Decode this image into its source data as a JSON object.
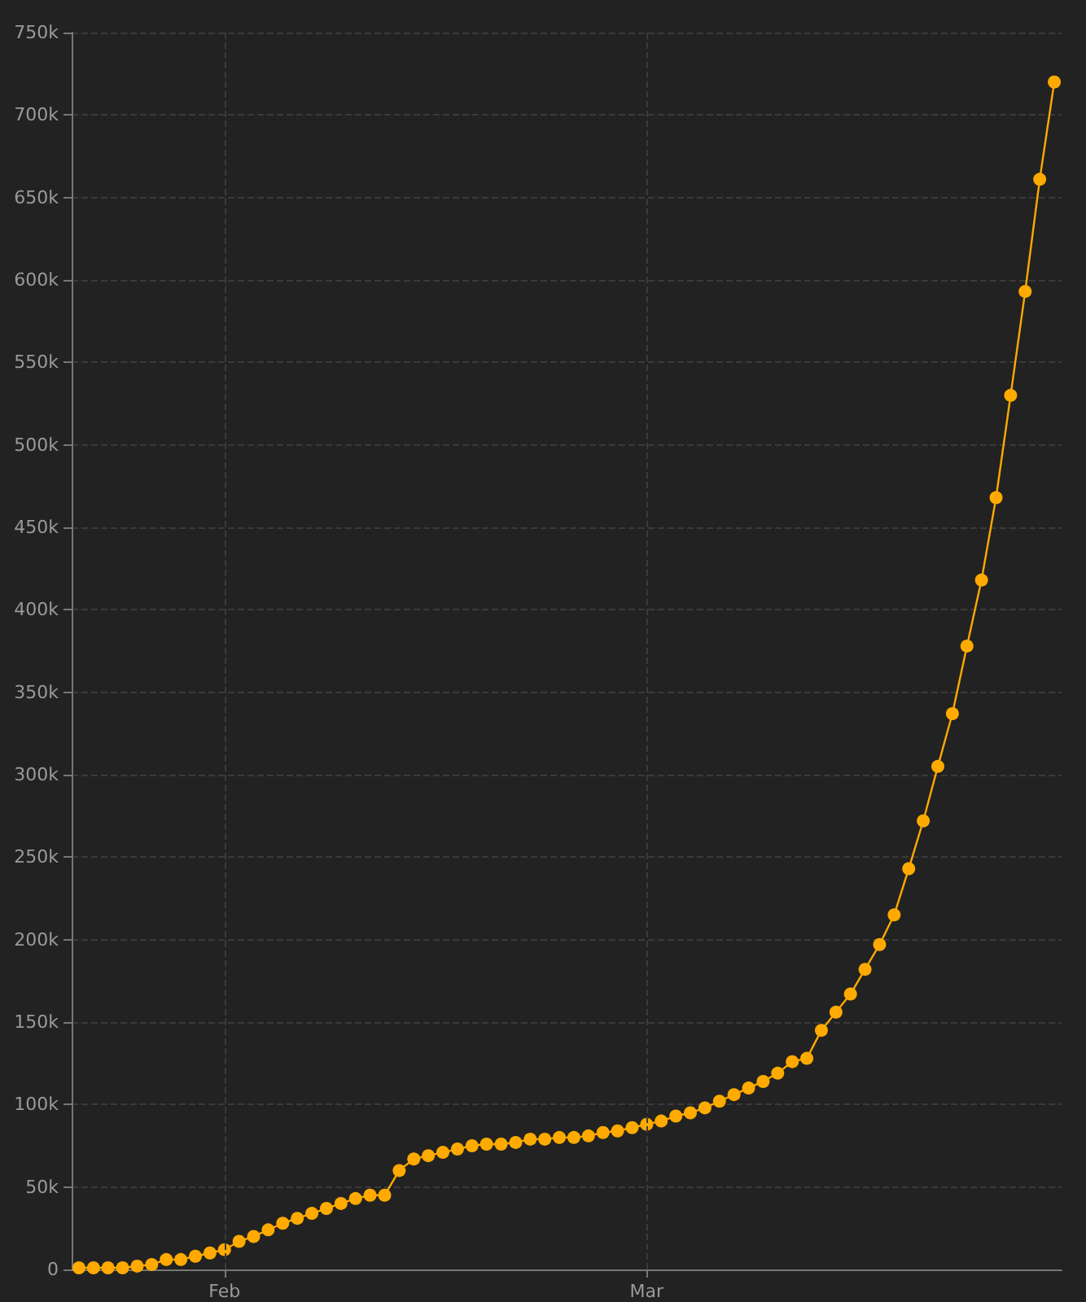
{
  "chart_data": {
    "type": "line",
    "color": "#ffaa00",
    "marker": "circle",
    "line_style": "solid",
    "grid": true,
    "x": [
      "--01-22",
      "--01-23",
      "--01-24",
      "--01-25",
      "--01-26",
      "--01-27",
      "--01-28",
      "--01-29",
      "--01-30",
      "--01-31",
      "--02-01",
      "--02-02",
      "--02-03",
      "--02-04",
      "--02-05",
      "--02-06",
      "--02-07",
      "--02-08",
      "--02-09",
      "--02-10",
      "--02-11",
      "--02-12",
      "--02-13",
      "--02-14",
      "--02-15",
      "--02-16",
      "--02-17",
      "--02-18",
      "--02-19",
      "--02-20",
      "--02-21",
      "--02-22",
      "--02-23",
      "--02-24",
      "--02-25",
      "--02-26",
      "--02-27",
      "--02-28",
      "--02-29",
      "--03-01",
      "--03-02",
      "--03-03",
      "--03-04",
      "--03-05",
      "--03-06",
      "--03-07",
      "--03-08",
      "--03-09",
      "--03-10",
      "--03-11",
      "--03-12",
      "--03-13",
      "--03-14",
      "--03-15",
      "--03-16",
      "--03-17",
      "--03-18",
      "--03-19",
      "--03-20",
      "--03-21",
      "--03-22",
      "--03-23",
      "--03-24",
      "--03-25",
      "--03-26",
      "--03-27",
      "--03-28",
      "--03-29"
    ],
    "values": [
      1000,
      1000,
      1000,
      1000,
      2000,
      3000,
      6000,
      6000,
      8000,
      10000,
      12000,
      17000,
      20000,
      24000,
      28000,
      31000,
      34000,
      37000,
      40000,
      43000,
      45000,
      45000,
      60000,
      67000,
      69000,
      71000,
      73000,
      75000,
      76000,
      76000,
      77000,
      79000,
      79000,
      80000,
      80000,
      81000,
      83000,
      84000,
      86000,
      88000,
      90000,
      93000,
      95000,
      98000,
      102000,
      106000,
      110000,
      114000,
      119000,
      126000,
      128000,
      145000,
      156000,
      167000,
      182000,
      197000,
      215000,
      243000,
      272000,
      305000,
      337000,
      378000,
      418000,
      468000,
      530000,
      593000,
      661000,
      720000
    ],
    "xlim": [
      "--01-21T12:00",
      "--03-29T12:00"
    ],
    "xticks": [
      {
        "value": "--02-01",
        "label": "Feb"
      },
      {
        "value": "--03-01",
        "label": "Mar"
      }
    ],
    "ylim": [
      0,
      750000
    ],
    "yticks": [
      0,
      {
        "value": 50000,
        "label": "50k"
      },
      {
        "value": 100000,
        "label": "100k"
      },
      {
        "value": 150000,
        "label": "150k"
      },
      {
        "value": 200000,
        "label": "200k"
      },
      {
        "value": 250000,
        "label": "250k"
      },
      {
        "value": 300000,
        "label": "300k"
      },
      {
        "value": 350000,
        "label": "350k"
      },
      {
        "value": 400000,
        "label": "400k"
      },
      {
        "value": 450000,
        "label": "450k"
      },
      {
        "value": 500000,
        "label": "500k"
      },
      {
        "value": 550000,
        "label": "550k"
      },
      {
        "value": 600000,
        "label": "600k"
      },
      {
        "value": 650000,
        "label": "650k"
      },
      {
        "value": 700000,
        "label": "700k"
      },
      {
        "value": 750000,
        "label": "750k"
      }
    ]
  }
}
